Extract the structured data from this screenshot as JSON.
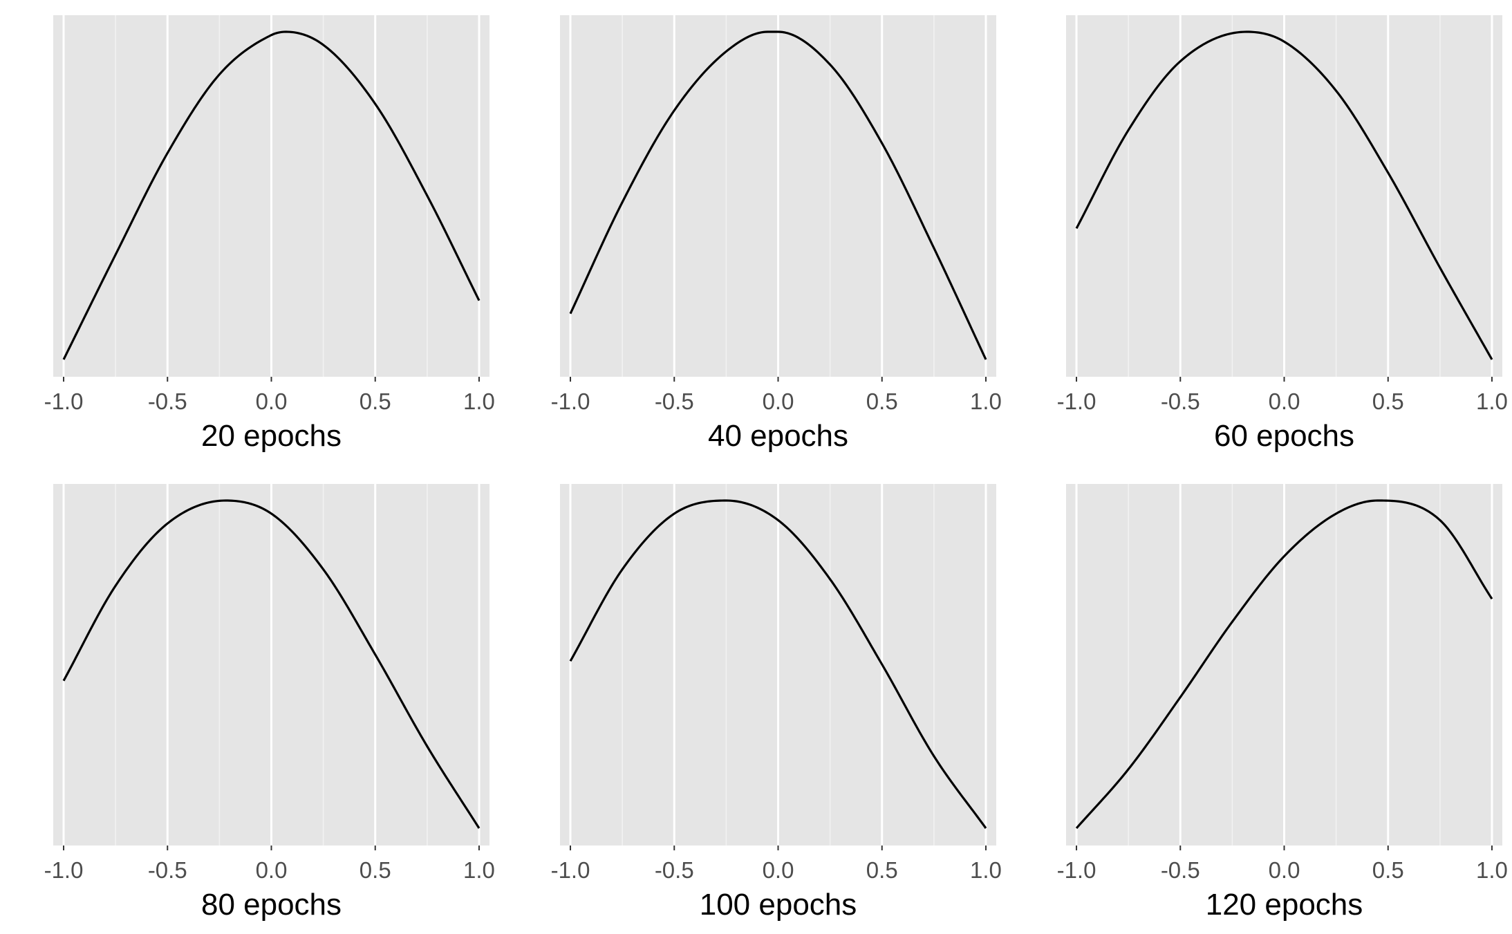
{
  "chart_data": [
    {
      "type": "line",
      "xlabel": "20 epochs",
      "xlim": [
        -1.05,
        1.05
      ],
      "x_ticks": [
        -1.0,
        -0.5,
        0.0,
        0.5,
        1.0
      ],
      "x_tick_labels": [
        "-1.0",
        "-0.5",
        "0.0",
        "0.5",
        "1.0"
      ],
      "y_axis_labels_shown": false,
      "grid": true,
      "x": [
        -1.0,
        -0.75,
        -0.5,
        -0.25,
        0.0,
        0.07,
        0.25,
        0.5,
        0.75,
        1.0
      ],
      "y": [
        0.0,
        0.32,
        0.63,
        0.87,
        0.99,
        1.0,
        0.96,
        0.78,
        0.5,
        0.18
      ]
    },
    {
      "type": "line",
      "xlabel": "40 epochs",
      "xlim": [
        -1.05,
        1.05
      ],
      "x_ticks": [
        -1.0,
        -0.5,
        0.0,
        0.5,
        1.0
      ],
      "x_tick_labels": [
        "-1.0",
        "-0.5",
        "0.0",
        "0.5",
        "1.0"
      ],
      "y_axis_labels_shown": false,
      "grid": true,
      "x": [
        -1.0,
        -0.75,
        -0.5,
        -0.25,
        -0.05,
        0.0,
        0.25,
        0.5,
        0.75,
        1.0
      ],
      "y": [
        0.14,
        0.48,
        0.76,
        0.94,
        1.0,
        1.0,
        0.9,
        0.66,
        0.34,
        0.0
      ]
    },
    {
      "type": "line",
      "xlabel": "60 epochs",
      "xlim": [
        -1.05,
        1.05
      ],
      "x_ticks": [
        -1.0,
        -0.5,
        0.0,
        0.5,
        1.0
      ],
      "x_tick_labels": [
        "-1.0",
        "-0.5",
        "0.0",
        "0.5",
        "1.0"
      ],
      "y_axis_labels_shown": false,
      "grid": true,
      "x": [
        -1.0,
        -0.75,
        -0.5,
        -0.18,
        0.0,
        0.25,
        0.5,
        0.75,
        1.0
      ],
      "y": [
        0.4,
        0.7,
        0.91,
        1.0,
        0.97,
        0.82,
        0.57,
        0.28,
        0.0
      ]
    },
    {
      "type": "line",
      "xlabel": "80 epochs",
      "xlim": [
        -1.05,
        1.05
      ],
      "x_ticks": [
        -1.0,
        -0.5,
        0.0,
        0.5,
        1.0
      ],
      "x_tick_labels": [
        "-1.0",
        "-0.5",
        "0.0",
        "0.5",
        "1.0"
      ],
      "y_axis_labels_shown": false,
      "grid": true,
      "x": [
        -1.0,
        -0.75,
        -0.5,
        -0.22,
        0.0,
        0.25,
        0.5,
        0.75,
        1.0
      ],
      "y": [
        0.45,
        0.74,
        0.93,
        1.0,
        0.96,
        0.79,
        0.53,
        0.25,
        0.0
      ]
    },
    {
      "type": "line",
      "xlabel": "100 epochs",
      "xlim": [
        -1.05,
        1.05
      ],
      "x_ticks": [
        -1.0,
        -0.5,
        0.0,
        0.5,
        1.0
      ],
      "x_tick_labels": [
        "-1.0",
        "-0.5",
        "0.0",
        "0.5",
        "1.0"
      ],
      "y_axis_labels_shown": false,
      "grid": true,
      "x": [
        -1.0,
        -0.75,
        -0.5,
        -0.25,
        0.0,
        0.25,
        0.5,
        0.75,
        1.0
      ],
      "y": [
        0.51,
        0.79,
        0.96,
        1.0,
        0.94,
        0.76,
        0.5,
        0.22,
        0.0
      ]
    },
    {
      "type": "line",
      "xlabel": "120 epochs",
      "xlim": [
        -1.05,
        1.05
      ],
      "x_ticks": [
        -1.0,
        -0.5,
        0.0,
        0.5,
        1.0
      ],
      "x_tick_labels": [
        "-1.0",
        "-0.5",
        "0.0",
        "0.5",
        "1.0"
      ],
      "y_axis_labels_shown": false,
      "grid": true,
      "x": [
        -1.0,
        -0.75,
        -0.5,
        -0.25,
        0.0,
        0.25,
        0.45,
        0.75,
        1.0
      ],
      "y": [
        0.0,
        0.18,
        0.4,
        0.63,
        0.83,
        0.96,
        1.0,
        0.94,
        0.7
      ]
    }
  ],
  "colors": {
    "panel_background": "#e5e5e5",
    "grid_major": "#ffffff",
    "grid_minor": "#f2f2f2",
    "line": "#000000",
    "tick_label": "#4d4d4d",
    "axis_label": "#000000"
  }
}
